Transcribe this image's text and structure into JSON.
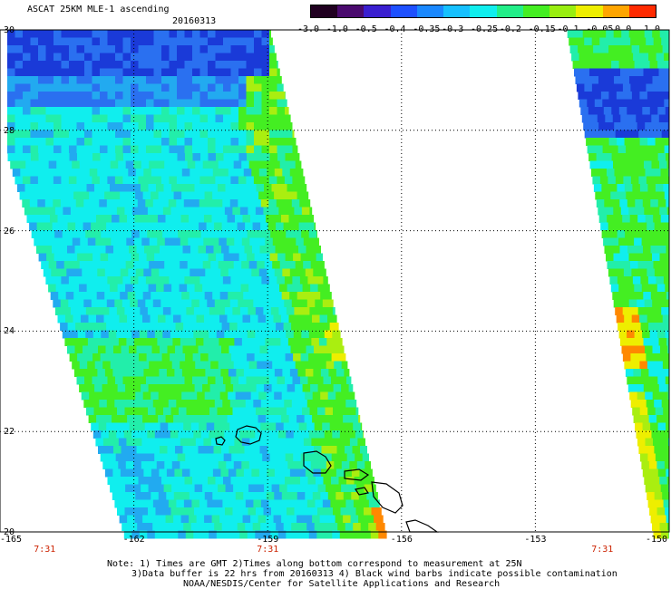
{
  "header": {
    "product_title": "ASCAT 25KM MLE-1 ascending",
    "date": "20160313"
  },
  "colorbar": {
    "labels": [
      "-3.0",
      "-1.0",
      "-0.5",
      "-0.4",
      "-0.35",
      "-0.3",
      "-0.25",
      "-0.2",
      "-0.15",
      "-0.1",
      "-0.05",
      "0.0",
      "1.0"
    ],
    "colors": [
      "#200020",
      "#4a0a6e",
      "#3a1fd0",
      "#1e50ff",
      "#1a88ff",
      "#16c0ff",
      "#10eeee",
      "#22ee88",
      "#44ee22",
      "#99ee10",
      "#eeee00",
      "#ffa500",
      "#ff2a00"
    ]
  },
  "axes": {
    "lon_ticks": [
      "-165",
      "-162",
      "-159",
      "-156",
      "-153",
      "-150"
    ],
    "lat_ticks": [
      "30",
      "28",
      "26",
      "24",
      "22",
      "20"
    ],
    "lon_range": [
      -165,
      -150
    ],
    "lat_range": [
      20,
      30
    ],
    "grid": "dotted"
  },
  "times": {
    "labels": [
      {
        "text": "7:31",
        "lon": -164.0
      },
      {
        "text": "7:31",
        "lon": -159.0
      },
      {
        "text": "7:31",
        "lon": -151.5
      }
    ],
    "color": "#cc2200"
  },
  "footer": {
    "note_line1": "Note: 1) Times are GMT 2)Times along bottom correspond to measurement at 25N",
    "note_line2": "3)Data buffer is 22 hrs from 20160313 4) Black wind barbs indicate possible contamination",
    "credit": "NOAA/NESDIS/Center for Satellite Applications and Research"
  },
  "map_colors": {
    "deep_blue": "#1a3ad8",
    "blue": "#2a70f0",
    "light_blue": "#22aaf0",
    "cyan": "#10eeee",
    "aqua_green": "#22eeaa",
    "green": "#44ee22",
    "yellow_green": "#aaee10",
    "yellow": "#eeee00",
    "orange": "#ff8800",
    "red": "#ff3300"
  }
}
